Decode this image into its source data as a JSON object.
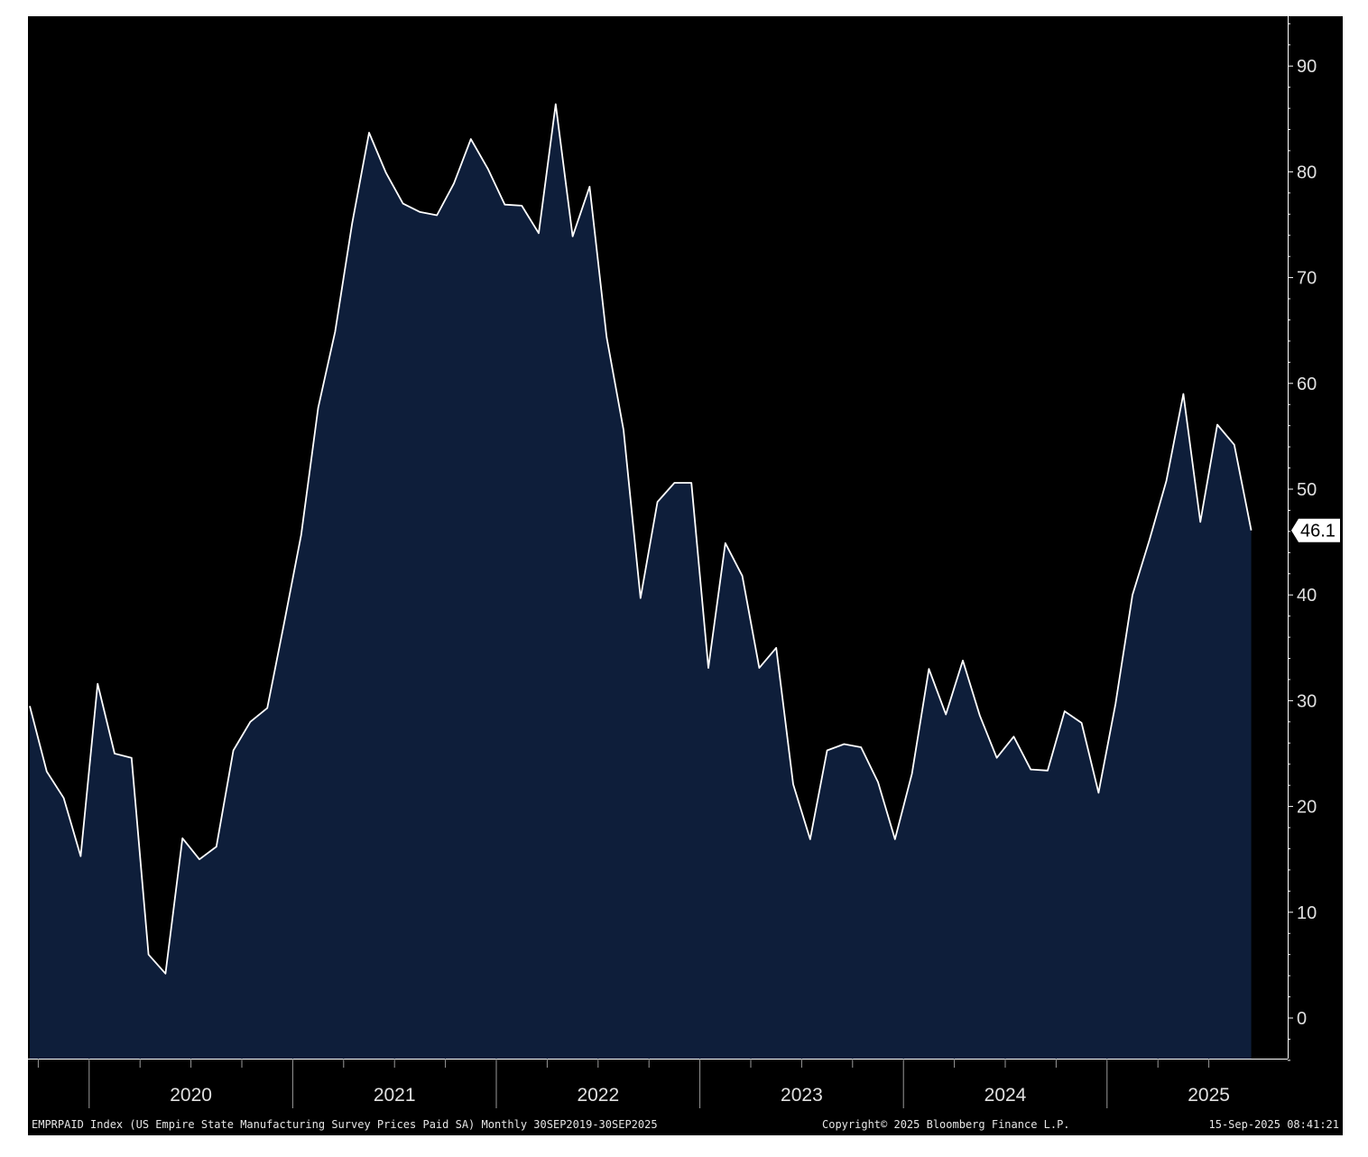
{
  "chart_data": {
    "type": "area",
    "title": "",
    "xlabel": "",
    "ylabel": "",
    "ylim": [
      -4,
      95
    ],
    "yticks": [
      0,
      10,
      20,
      30,
      40,
      50,
      60,
      70,
      80,
      90
    ],
    "year_labels": [
      "2020",
      "2021",
      "2022",
      "2023",
      "2024",
      "2025"
    ],
    "last_value_label": "46.1",
    "line_color": "#ffffff",
    "fill_color": "#0e1e3a",
    "background": "#000000",
    "series": [
      {
        "x": [
          "2019-09",
          "2019-10",
          "2019-11",
          "2019-12",
          "2020-01",
          "2020-02",
          "2020-03",
          "2020-04",
          "2020-05",
          "2020-06",
          "2020-07",
          "2020-08",
          "2020-09",
          "2020-10",
          "2020-11",
          "2020-12",
          "2021-01",
          "2021-02",
          "2021-03",
          "2021-04",
          "2021-05",
          "2021-06",
          "2021-07",
          "2021-08",
          "2021-09",
          "2021-10",
          "2021-11",
          "2021-12",
          "2022-01",
          "2022-02",
          "2022-03",
          "2022-04",
          "2022-05",
          "2022-06",
          "2022-07",
          "2022-08",
          "2022-09",
          "2022-10",
          "2022-11",
          "2022-12",
          "2023-01",
          "2023-02",
          "2023-03",
          "2023-04",
          "2023-05",
          "2023-06",
          "2023-07",
          "2023-08",
          "2023-09",
          "2023-10",
          "2023-11",
          "2023-12",
          "2024-01",
          "2024-02",
          "2024-03",
          "2024-04",
          "2024-05",
          "2024-06",
          "2024-07",
          "2024-08",
          "2024-09",
          "2024-10",
          "2024-11",
          "2024-12",
          "2025-01",
          "2025-02",
          "2025-03",
          "2025-04",
          "2025-05",
          "2025-06",
          "2025-07",
          "2025-08",
          "2025-09"
        ],
        "values": [
          29.5,
          23.3,
          20.8,
          15.3,
          31.6,
          25.0,
          24.6,
          6.0,
          4.2,
          17.0,
          15.0,
          16.2,
          25.3,
          28.0,
          29.3,
          37.4,
          45.7,
          57.7,
          64.9,
          75.1,
          83.7,
          79.9,
          77.0,
          76.2,
          75.9,
          78.9,
          83.1,
          80.3,
          76.9,
          76.8,
          74.2,
          86.4,
          73.9,
          78.6,
          64.4,
          55.6,
          39.7,
          48.8,
          50.6,
          50.6,
          33.1,
          44.9,
          41.8,
          33.1,
          35.0,
          22.1,
          16.9,
          25.3,
          25.9,
          25.6,
          22.3,
          16.9,
          23.1,
          33.0,
          28.7,
          33.8,
          28.6,
          24.6,
          26.6,
          23.5,
          23.4,
          29.0,
          27.9,
          21.3,
          29.7,
          40.0,
          45.2,
          50.8,
          59.0,
          46.9,
          56.1,
          54.2,
          46.1
        ]
      }
    ]
  },
  "footer": {
    "left": "EMPRPAID Index (US Empire State Manufacturing Survey Prices Paid SA)  Monthly 30SEP2019-30SEP2025",
    "center": "Copyright© 2025 Bloomberg Finance L.P.",
    "right": "15-Sep-2025 08:41:21"
  }
}
